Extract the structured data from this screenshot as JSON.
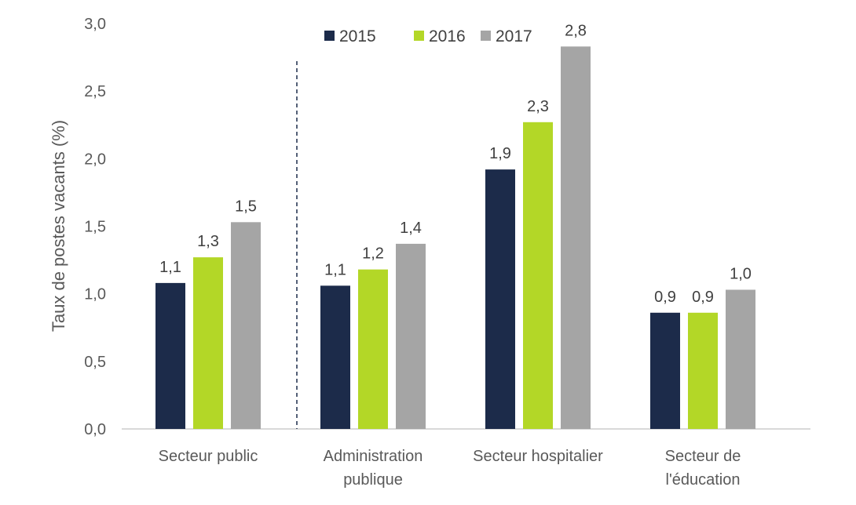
{
  "chart_data": {
    "type": "bar",
    "title": "",
    "xlabel": "",
    "ylabel": "Taux de postes vacants (%)",
    "ylim": [
      0,
      3.0
    ],
    "yticks": [
      "0,0",
      "0,5",
      "1,0",
      "1,5",
      "2,0",
      "2,5",
      "3,0"
    ],
    "ytick_values": [
      0,
      0.5,
      1.0,
      1.5,
      2.0,
      2.5,
      3.0
    ],
    "grid": false,
    "legend_position": "top-center",
    "categories": [
      [
        "Secteur public"
      ],
      [
        "Administration",
        "publique"
      ],
      [
        "Secteur hospitalier"
      ],
      [
        "Secteur de",
        "l'éducation"
      ]
    ],
    "series": [
      {
        "name": "2015",
        "color": "#1c2b4a",
        "values": [
          1.08,
          1.06,
          1.92,
          0.86
        ],
        "labels": [
          "1,1",
          "1,1",
          "1,9",
          "0,9"
        ]
      },
      {
        "name": "2016",
        "color": "#b3d727",
        "values": [
          1.27,
          1.18,
          2.27,
          0.86
        ],
        "labels": [
          "1,3",
          "1,2",
          "2,3",
          "0,9"
        ]
      },
      {
        "name": "2017",
        "color": "#a5a5a5",
        "values": [
          1.53,
          1.37,
          2.83,
          1.03
        ],
        "labels": [
          "1,5",
          "1,4",
          "2,8",
          "1,0"
        ]
      }
    ],
    "annotations": [
      "dashed vertical separator between 'Secteur public' and 'Administration publique'"
    ]
  }
}
